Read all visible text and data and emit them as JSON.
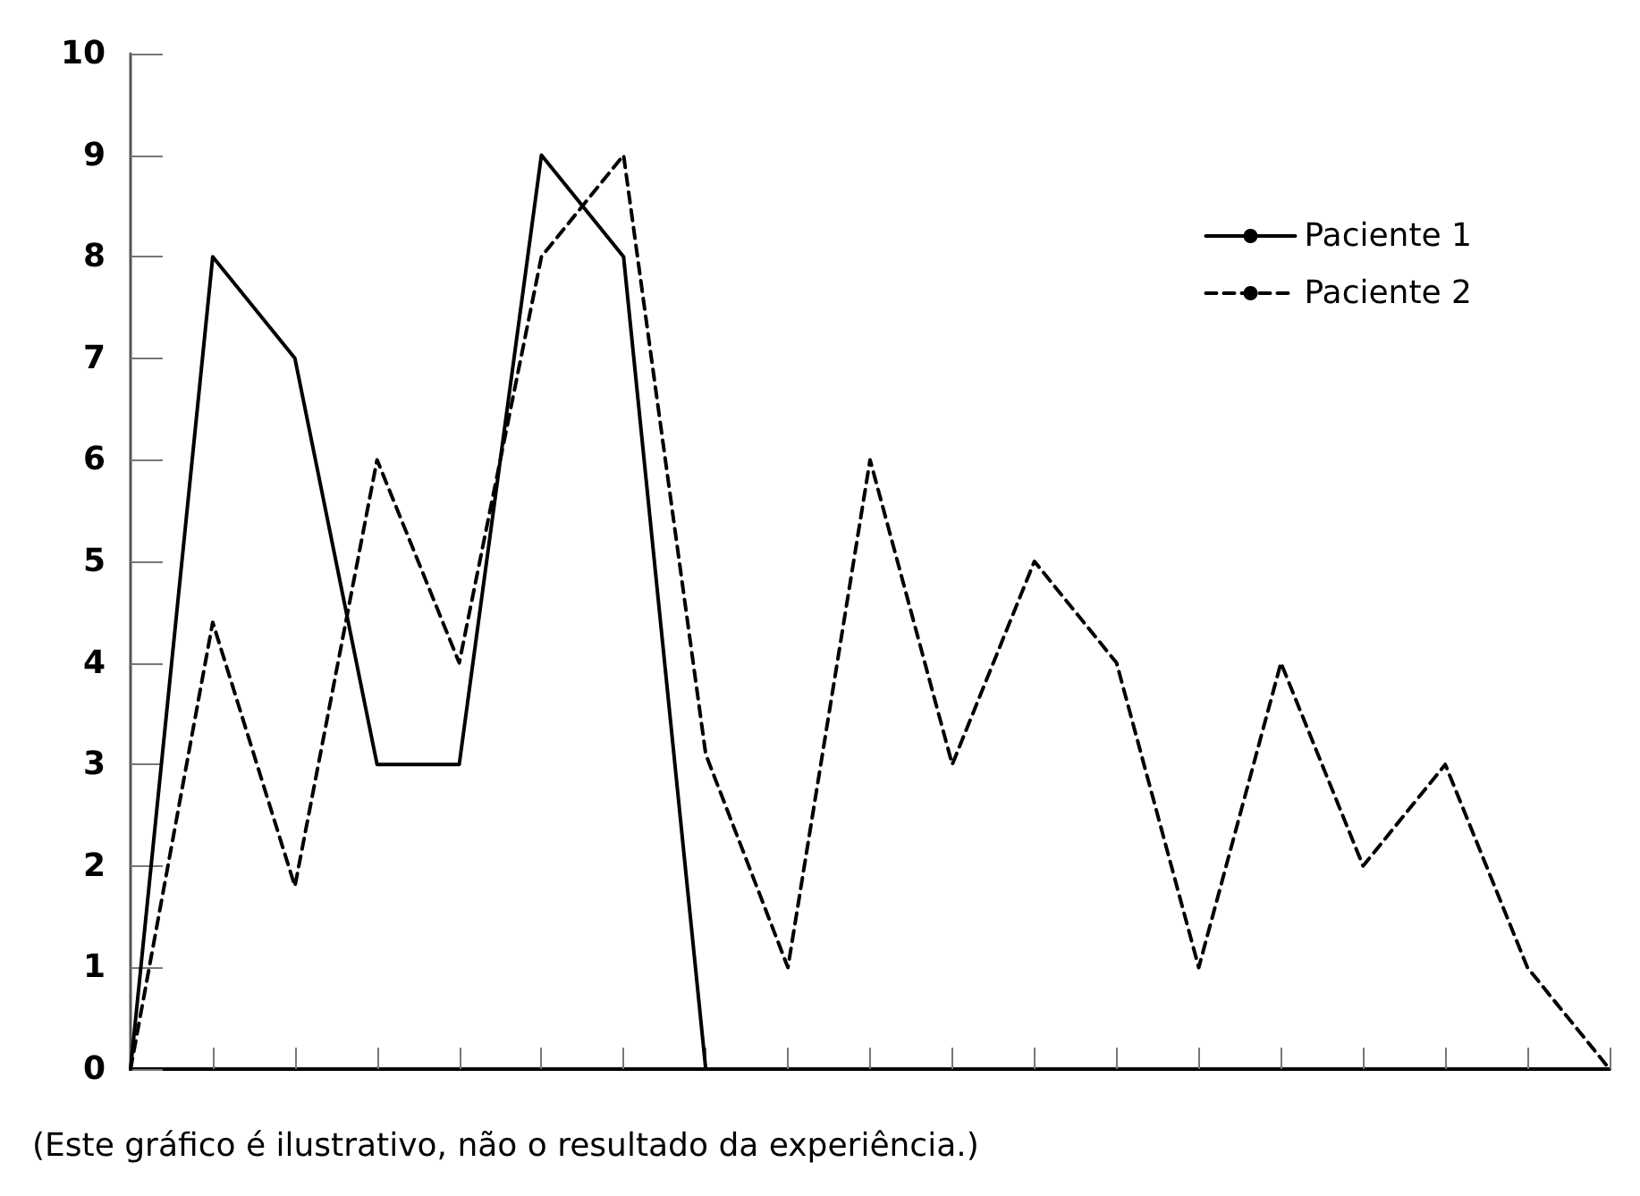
{
  "chart_data": {
    "type": "line",
    "categories": [
      null,
      null,
      null,
      null,
      null,
      null,
      null,
      null,
      null,
      null,
      null,
      null,
      null,
      null,
      null,
      null,
      null,
      null,
      null
    ],
    "series": [
      {
        "name": "Paciente 1",
        "color": "#000000",
        "line_style": "solid",
        "values": [
          0,
          8,
          7,
          3,
          3,
          9,
          8,
          0,
          null,
          null,
          null,
          null,
          null,
          null,
          null,
          null,
          null,
          null,
          null
        ]
      },
      {
        "name": "Paciente 2",
        "color": "#000000",
        "line_style": "dashed",
        "values": [
          0,
          4.4,
          1.8,
          6,
          4,
          8,
          9,
          3.1,
          1,
          6,
          3,
          5,
          4,
          1,
          4,
          2,
          3,
          1,
          0
        ]
      }
    ],
    "ylim": [
      0,
      10
    ],
    "yticks": [
      0,
      1,
      2,
      3,
      4,
      5,
      6,
      7,
      8,
      9,
      10
    ],
    "grid": false,
    "legend": "top right",
    "marker": "none",
    "annotations": [
      "(Este gráfico é ilustrativo, não o resultado da experiência.)"
    ]
  }
}
